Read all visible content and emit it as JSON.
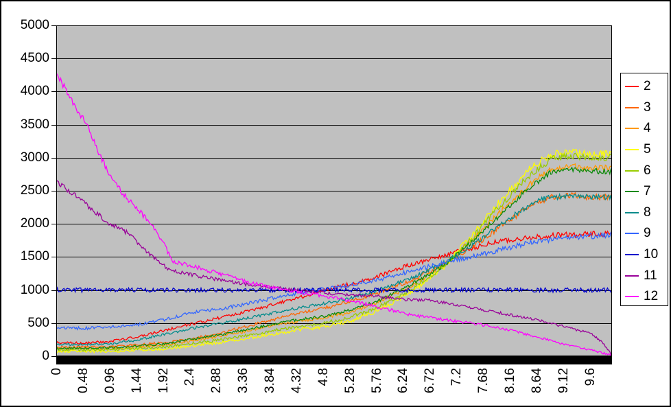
{
  "chart_data": {
    "type": "line",
    "title": "",
    "grid_on": true,
    "legend_position": "right",
    "plot_background": "#C0C0C0",
    "x_axis": {
      "range": [
        0,
        10
      ],
      "tick_step": 0.48,
      "tick_labels": [
        "0",
        "0.48",
        "0.96",
        "1.44",
        "1.92",
        "2.4",
        "2.88",
        "3.36",
        "3.84",
        "4.32",
        "4.8",
        "5.28",
        "5.76",
        "6.24",
        "6.72",
        "7.2",
        "7.68",
        "8.16",
        "8.64",
        "9.12",
        "9.6"
      ]
    },
    "y_axis": {
      "range": [
        0,
        5000
      ],
      "gridline_step": 500,
      "tick_labels": [
        "0",
        "500",
        "1000",
        "1500",
        "2000",
        "2500",
        "3000",
        "3500",
        "4000",
        "4500",
        "5000"
      ]
    },
    "series": [
      {
        "name": "2",
        "color": "#FF0000",
        "noise": 45,
        "keypoints": [
          [
            0,
            205
          ],
          [
            0.5,
            200
          ],
          [
            1,
            225
          ],
          [
            1.5,
            300
          ],
          [
            2,
            400
          ],
          [
            2.4,
            480
          ],
          [
            3,
            590
          ],
          [
            3.7,
            730
          ],
          [
            4.3,
            870
          ],
          [
            4.8,
            1000
          ],
          [
            5.3,
            1090
          ],
          [
            5.8,
            1210
          ],
          [
            6.4,
            1390
          ],
          [
            7,
            1530
          ],
          [
            7.5,
            1640
          ],
          [
            8,
            1740
          ],
          [
            8.5,
            1800
          ],
          [
            9,
            1830
          ],
          [
            9.5,
            1845
          ],
          [
            10,
            1850
          ]
        ]
      },
      {
        "name": "3",
        "color": "#FF6600",
        "noise": 45,
        "keypoints": [
          [
            0,
            135
          ],
          [
            1,
            140
          ],
          [
            2,
            210
          ],
          [
            2.4,
            255
          ],
          [
            3,
            360
          ],
          [
            3.7,
            510
          ],
          [
            4.3,
            640
          ],
          [
            4.8,
            720
          ],
          [
            5.3,
            830
          ],
          [
            5.8,
            960
          ],
          [
            6.4,
            1150
          ],
          [
            7,
            1400
          ],
          [
            7.5,
            1660
          ],
          [
            8,
            1960
          ],
          [
            8.5,
            2260
          ],
          [
            8.9,
            2400
          ],
          [
            9.3,
            2430
          ],
          [
            9.6,
            2400
          ],
          [
            10,
            2410
          ]
        ]
      },
      {
        "name": "4",
        "color": "#FF9900",
        "noise": 45,
        "keypoints": [
          [
            0,
            110
          ],
          [
            1,
            118
          ],
          [
            2,
            175
          ],
          [
            2.4,
            230
          ],
          [
            3,
            310
          ],
          [
            3.7,
            430
          ],
          [
            4.3,
            520
          ],
          [
            4.8,
            575
          ],
          [
            5.3,
            670
          ],
          [
            5.8,
            820
          ],
          [
            6.4,
            1070
          ],
          [
            7,
            1390
          ],
          [
            7.5,
            1770
          ],
          [
            8,
            2190
          ],
          [
            8.5,
            2590
          ],
          [
            8.9,
            2830
          ],
          [
            9.3,
            2870
          ],
          [
            9.6,
            2840
          ],
          [
            10,
            2850
          ]
        ]
      },
      {
        "name": "5",
        "color": "#FFFF00",
        "noise": 55,
        "keypoints": [
          [
            0,
            70
          ],
          [
            1,
            76
          ],
          [
            2,
            115
          ],
          [
            2.4,
            150
          ],
          [
            3,
            215
          ],
          [
            3.7,
            305
          ],
          [
            4.3,
            390
          ],
          [
            4.8,
            440
          ],
          [
            5.3,
            535
          ],
          [
            5.8,
            695
          ],
          [
            6.4,
            975
          ],
          [
            7,
            1370
          ],
          [
            7.5,
            1840
          ],
          [
            8,
            2360
          ],
          [
            8.5,
            2820
          ],
          [
            8.9,
            3050
          ],
          [
            9.3,
            3080
          ],
          [
            9.6,
            3040
          ],
          [
            10,
            3060
          ]
        ]
      },
      {
        "name": "6",
        "color": "#99CC00",
        "noise": 50,
        "keypoints": [
          [
            0,
            92
          ],
          [
            1,
            98
          ],
          [
            2,
            145
          ],
          [
            2.4,
            185
          ],
          [
            3,
            255
          ],
          [
            3.7,
            355
          ],
          [
            4.3,
            445
          ],
          [
            4.8,
            495
          ],
          [
            5.3,
            590
          ],
          [
            5.8,
            745
          ],
          [
            6.4,
            1010
          ],
          [
            7,
            1370
          ],
          [
            7.5,
            1800
          ],
          [
            8,
            2290
          ],
          [
            8.5,
            2720
          ],
          [
            8.9,
            2980
          ],
          [
            9.3,
            3030
          ],
          [
            9.6,
            3000
          ],
          [
            10,
            3010
          ]
        ]
      },
      {
        "name": "7",
        "color": "#0B8A0B",
        "noise": 40,
        "keypoints": [
          [
            0,
            120
          ],
          [
            1,
            128
          ],
          [
            2,
            190
          ],
          [
            2.4,
            250
          ],
          [
            3,
            330
          ],
          [
            3.7,
            450
          ],
          [
            4.3,
            545
          ],
          [
            4.8,
            600
          ],
          [
            5.3,
            700
          ],
          [
            5.8,
            840
          ],
          [
            6.4,
            1090
          ],
          [
            7,
            1390
          ],
          [
            7.5,
            1740
          ],
          [
            8,
            2140
          ],
          [
            8.5,
            2540
          ],
          [
            8.9,
            2780
          ],
          [
            9.3,
            2820
          ],
          [
            9.6,
            2800
          ],
          [
            10,
            2790
          ]
        ]
      },
      {
        "name": "8",
        "color": "#008B8B",
        "noise": 40,
        "keypoints": [
          [
            0,
            180
          ],
          [
            0.5,
            175
          ],
          [
            1,
            190
          ],
          [
            1.5,
            250
          ],
          [
            2,
            340
          ],
          [
            2.4,
            415
          ],
          [
            3,
            500
          ],
          [
            3.7,
            620
          ],
          [
            4.3,
            720
          ],
          [
            4.8,
            790
          ],
          [
            5.3,
            880
          ],
          [
            5.8,
            1000
          ],
          [
            6.4,
            1180
          ],
          [
            7,
            1420
          ],
          [
            7.5,
            1680
          ],
          [
            8,
            1990
          ],
          [
            8.5,
            2280
          ],
          [
            8.8,
            2390
          ],
          [
            9.2,
            2420
          ],
          [
            9.6,
            2410
          ],
          [
            10,
            2400
          ]
        ]
      },
      {
        "name": "9",
        "color": "#3366FF",
        "noise": 45,
        "keypoints": [
          [
            0,
            435
          ],
          [
            0.5,
            420
          ],
          [
            1,
            445
          ],
          [
            1.5,
            480
          ],
          [
            2,
            560
          ],
          [
            2.4,
            660
          ],
          [
            3,
            720
          ],
          [
            3.7,
            840
          ],
          [
            4.3,
            950
          ],
          [
            4.8,
            1010
          ],
          [
            5.3,
            1080
          ],
          [
            5.8,
            1160
          ],
          [
            6.4,
            1290
          ],
          [
            7,
            1420
          ],
          [
            7.5,
            1510
          ],
          [
            8,
            1610
          ],
          [
            8.5,
            1710
          ],
          [
            9,
            1780
          ],
          [
            9.5,
            1810
          ],
          [
            10,
            1830
          ]
        ]
      },
      {
        "name": "10",
        "color": "#0000CC",
        "noise": 50,
        "keypoints": [
          [
            0,
            1000
          ],
          [
            10,
            1000
          ]
        ]
      },
      {
        "name": "11",
        "color": "#990099",
        "noise": 38,
        "keypoints": [
          [
            0,
            2640
          ],
          [
            0.3,
            2460
          ],
          [
            0.56,
            2280
          ],
          [
            0.9,
            2040
          ],
          [
            1.3,
            1855
          ],
          [
            1.6,
            1600
          ],
          [
            1.9,
            1380
          ],
          [
            2.1,
            1290
          ],
          [
            2.5,
            1220
          ],
          [
            2.9,
            1160
          ],
          [
            3.4,
            1090
          ],
          [
            3.9,
            1040
          ],
          [
            4.4,
            990
          ],
          [
            4.8,
            960
          ],
          [
            5.3,
            930
          ],
          [
            5.8,
            900
          ],
          [
            6.2,
            860
          ],
          [
            6.7,
            845
          ],
          [
            7.2,
            780
          ],
          [
            7.7,
            700
          ],
          [
            8.2,
            620
          ],
          [
            8.6,
            560
          ],
          [
            9,
            480
          ],
          [
            9.35,
            400
          ],
          [
            9.6,
            350
          ],
          [
            9.8,
            230
          ],
          [
            9.95,
            80
          ],
          [
            10,
            15
          ]
        ]
      },
      {
        "name": "12",
        "color": "#FF00FF",
        "noise": 42,
        "keypoints": [
          [
            0,
            4280
          ],
          [
            0.15,
            4060
          ],
          [
            0.35,
            3750
          ],
          [
            0.56,
            3500
          ],
          [
            0.75,
            3100
          ],
          [
            0.93,
            2780
          ],
          [
            1.17,
            2490
          ],
          [
            1.46,
            2220
          ],
          [
            1.7,
            2010
          ],
          [
            1.9,
            1750
          ],
          [
            2.1,
            1420
          ],
          [
            2.4,
            1370
          ],
          [
            2.9,
            1260
          ],
          [
            3.4,
            1130
          ],
          [
            3.9,
            1030
          ],
          [
            4.4,
            960
          ],
          [
            4.8,
            910
          ],
          [
            5.3,
            840
          ],
          [
            5.8,
            740
          ],
          [
            6.4,
            620
          ],
          [
            7,
            550
          ],
          [
            7.7,
            470
          ],
          [
            8.2,
            390
          ],
          [
            8.6,
            300
          ],
          [
            9.1,
            190
          ],
          [
            9.6,
            95
          ],
          [
            10,
            15
          ]
        ]
      }
    ]
  }
}
